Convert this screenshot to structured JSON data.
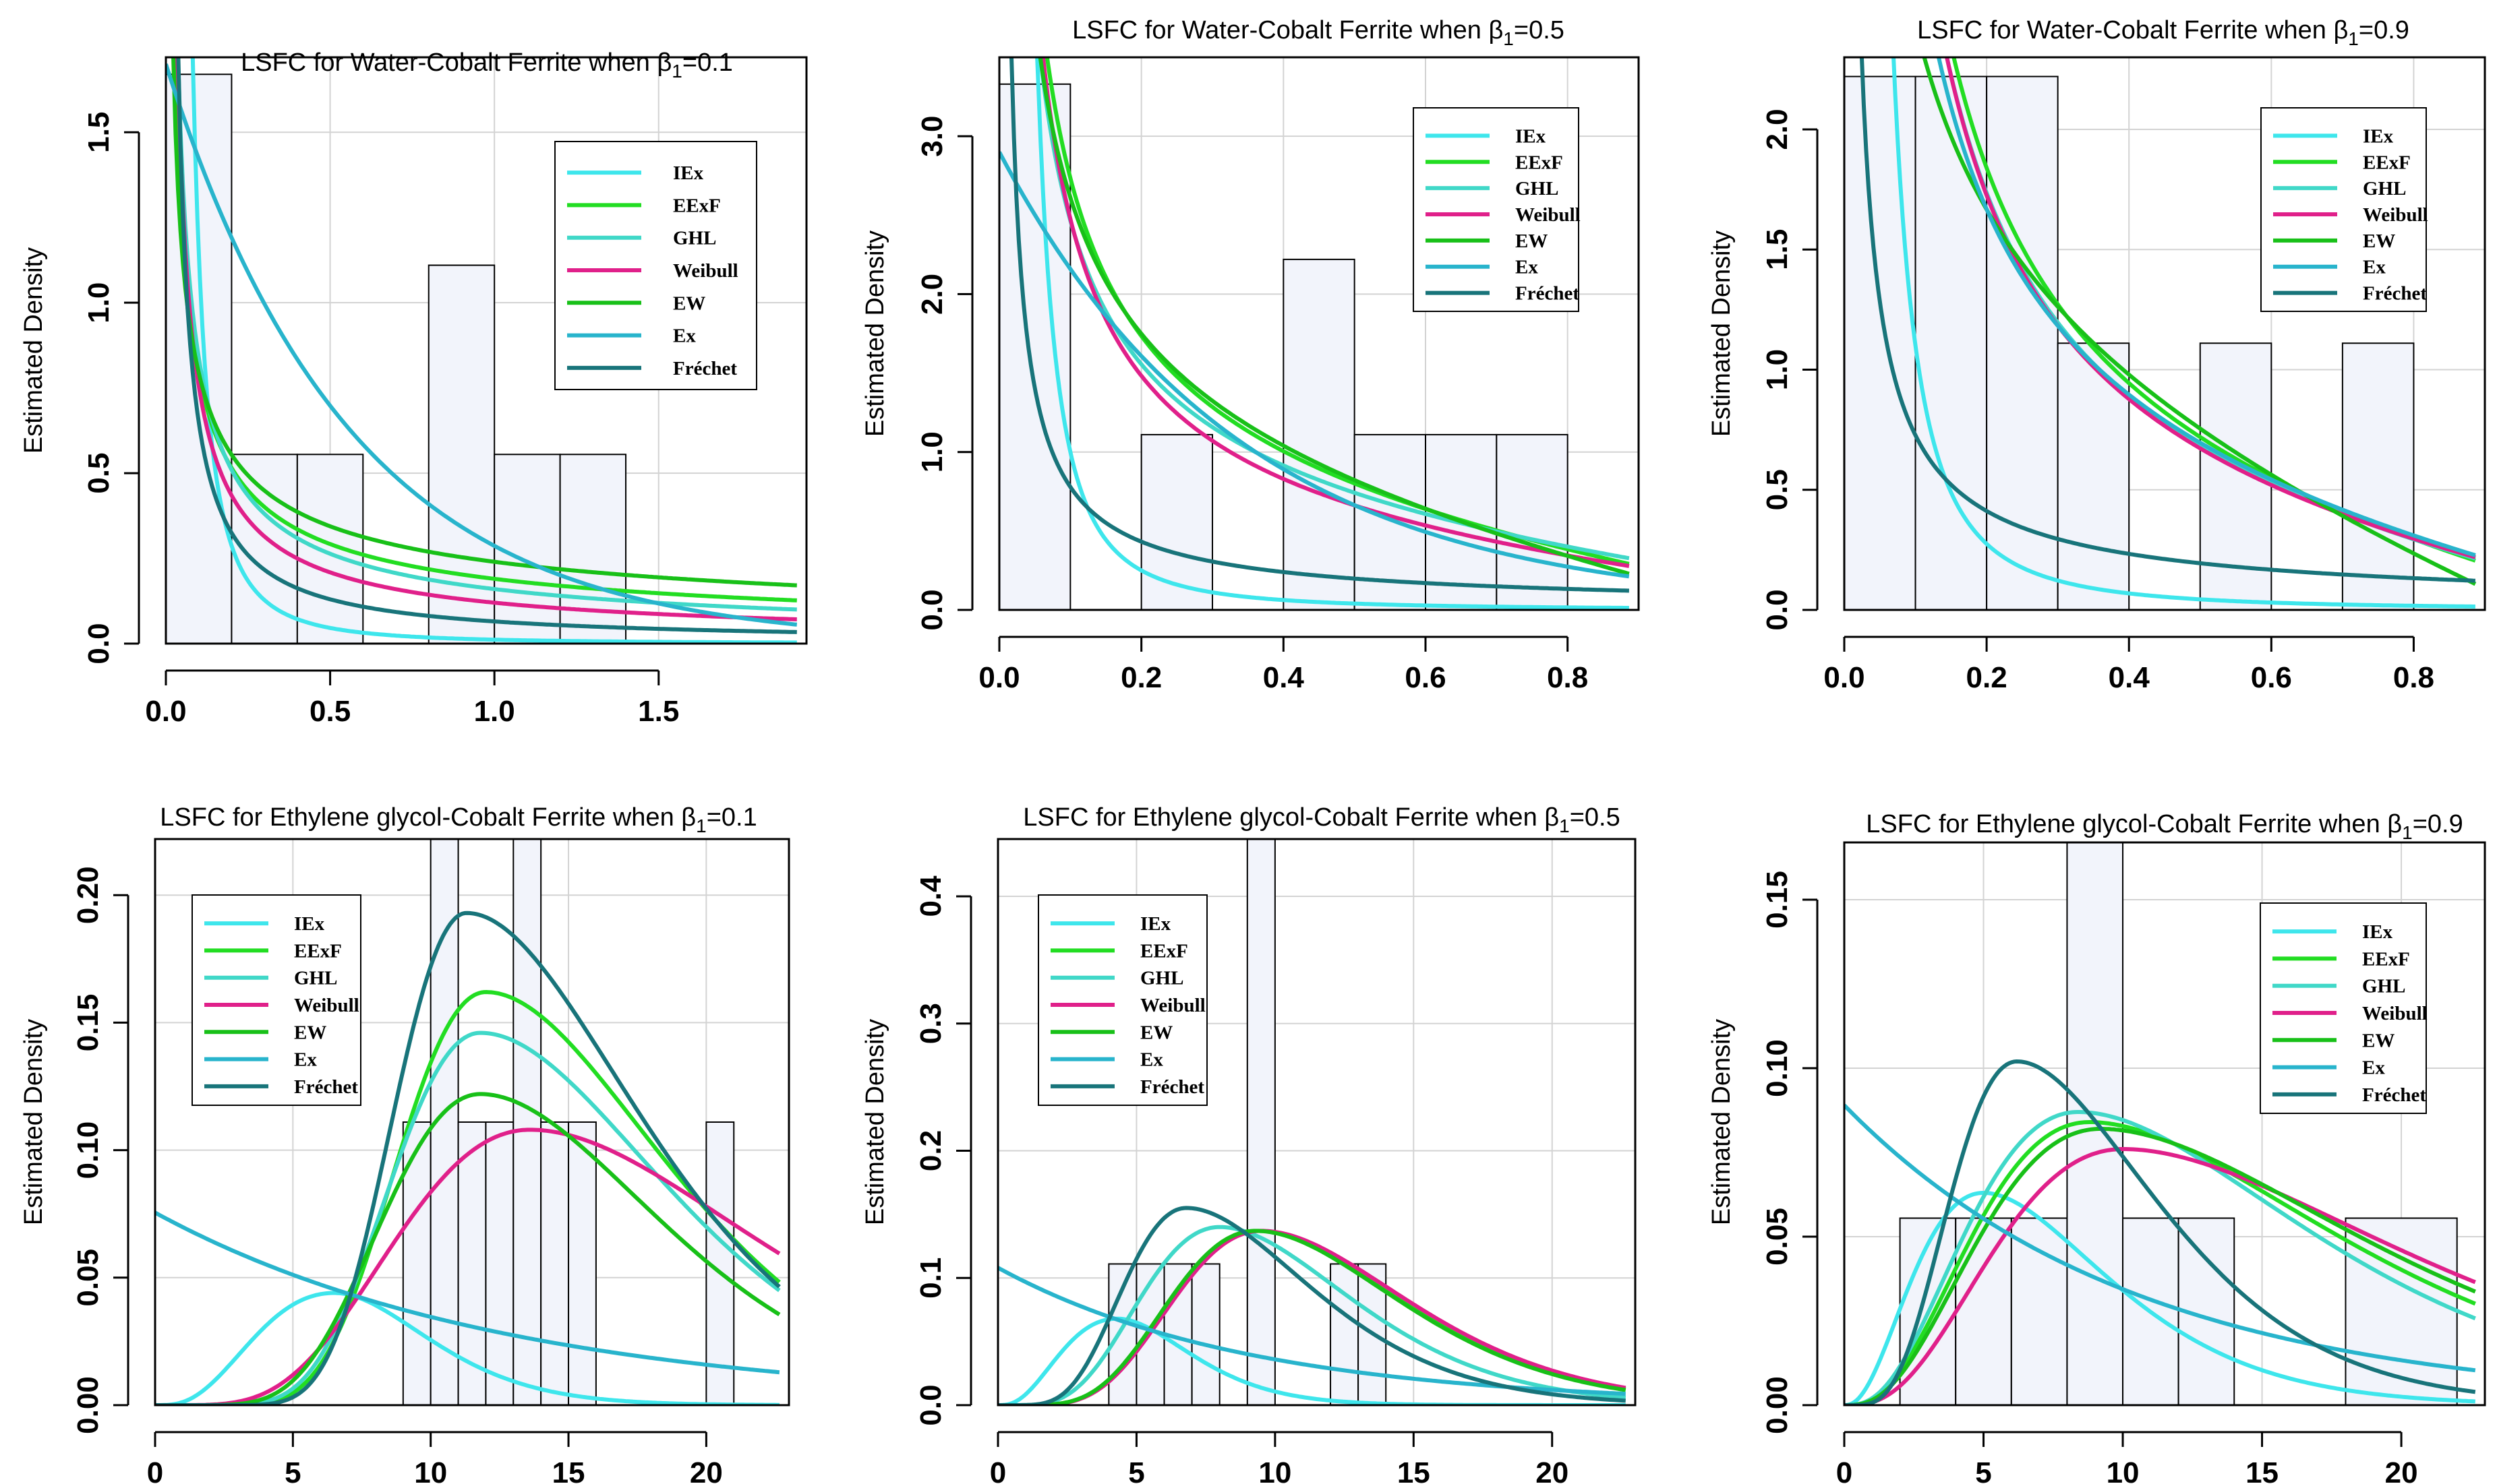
{
  "chart_data": [
    {
      "type": "histogram+density",
      "title_prefix": "LSFC for Water-Cobalt Ferrite when ",
      "title_beta": "β",
      "title_sub": "1",
      "title_suffix": "=0.1",
      "ylabel": "Estimated Density",
      "xlim": [
        0,
        1.95
      ],
      "ylim": [
        0,
        1.72
      ],
      "xticks": [
        0,
        0.5,
        1,
        1.5
      ],
      "xtick_labels": [
        "0.0",
        "0.5",
        "1.0",
        "1.5"
      ],
      "yticks": [
        0,
        0.5,
        1,
        1.5
      ],
      "ytick_labels": [
        "0.0",
        "0.5",
        "1.0",
        "1.5"
      ],
      "xgrid": [
        0,
        0.5,
        1,
        1.5
      ],
      "ygrid": [
        0,
        0.5,
        1,
        1.5
      ],
      "bins": [
        [
          0,
          0.2,
          1.67
        ],
        [
          0.2,
          0.4,
          0.555
        ],
        [
          0.4,
          0.6,
          0.555
        ],
        [
          0.6,
          0.8,
          0
        ],
        [
          0.8,
          1.0,
          1.11
        ],
        [
          1.0,
          1.2,
          0.555
        ],
        [
          1.2,
          1.4,
          0.555
        ]
      ],
      "series": [
        {
          "name": "IEx",
          "color": "#3ee6ec",
          "kind": "iex",
          "params": [
            0.0115
          ]
        },
        {
          "name": "EExF",
          "color": "#22dd22",
          "kind": "pow",
          "params": [
            0.19,
            0.62,
            0
          ]
        },
        {
          "name": "GHL",
          "color": "#40d8c8",
          "kind": "pow",
          "params": [
            0.16,
            0.72,
            0
          ]
        },
        {
          "name": "Weibull",
          "color": "#e0208a",
          "kind": "pow",
          "params": [
            0.12,
            0.8,
            0
          ]
        },
        {
          "name": "EW",
          "color": "#18c018",
          "kind": "pow",
          "params": [
            0.24,
            0.52,
            0
          ]
        },
        {
          "name": "Ex",
          "color": "#28b4cc",
          "kind": "exp",
          "params": [
            1.7,
            1.78
          ]
        },
        {
          "name": "Fréchet",
          "color": "#18747a",
          "kind": "pow",
          "params": [
            0.065,
            1.0,
            0
          ]
        }
      ],
      "legend_position": "top-right"
    },
    {
      "type": "histogram+density",
      "title_prefix": "LSFC for Water-Cobalt Ferrite when ",
      "title_beta": "β",
      "title_sub": "1",
      "title_suffix": "=0.5",
      "ylabel": "Estimated Density",
      "xlim": [
        0,
        0.9
      ],
      "ylim": [
        0,
        3.5
      ],
      "xticks": [
        0,
        0.2,
        0.4,
        0.6,
        0.8
      ],
      "xtick_labels": [
        "0.0",
        "0.2",
        "0.4",
        "0.6",
        "0.8"
      ],
      "yticks": [
        0,
        1,
        2,
        3
      ],
      "ytick_labels": [
        "0.0",
        "1.0",
        "2.0",
        "3.0"
      ],
      "xgrid": [
        0,
        0.2,
        0.4,
        0.6,
        0.8
      ],
      "ygrid": [
        0,
        1,
        2,
        3
      ],
      "bins": [
        [
          0,
          0.1,
          3.33
        ],
        [
          0.1,
          0.2,
          0
        ],
        [
          0.2,
          0.3,
          1.11
        ],
        [
          0.3,
          0.4,
          0
        ],
        [
          0.4,
          0.5,
          2.22
        ],
        [
          0.5,
          0.6,
          1.11
        ],
        [
          0.6,
          0.7,
          1.11
        ],
        [
          0.7,
          0.8,
          1.11
        ]
      ],
      "series": [
        {
          "name": "IEx",
          "color": "#3ee6ec",
          "kind": "iex",
          "params": [
            0.01
          ]
        },
        {
          "name": "EExF",
          "color": "#22dd22",
          "kind": "pow",
          "params": [
            0.7,
            0.6,
            -0.52
          ]
        },
        {
          "name": "GHL",
          "color": "#40d8c8",
          "kind": "pow",
          "params": [
            0.6,
            0.62,
            -0.36
          ]
        },
        {
          "name": "Weibull",
          "color": "#e0208a",
          "kind": "pow",
          "params": [
            0.5,
            0.7,
            -0.3
          ]
        },
        {
          "name": "EW",
          "color": "#18c018",
          "kind": "pow",
          "params": [
            0.85,
            0.5,
            -0.76
          ]
        },
        {
          "name": "Ex",
          "color": "#28b4cc",
          "kind": "exp",
          "params": [
            2.9,
            2.95
          ]
        },
        {
          "name": "Fréchet",
          "color": "#18747a",
          "kind": "pow",
          "params": [
            0.11,
            0.85,
            0
          ]
        }
      ],
      "legend_position": "top-right"
    },
    {
      "type": "histogram+density",
      "title_prefix": "LSFC for Water-Cobalt Ferrite when ",
      "title_beta": "β",
      "title_sub": "1",
      "title_suffix": "=0.9",
      "ylabel": "Estimated Density",
      "xlim": [
        0,
        0.9
      ],
      "ylim": [
        0,
        2.3
      ],
      "xticks": [
        0,
        0.2,
        0.4,
        0.6,
        0.8
      ],
      "xtick_labels": [
        "0.0",
        "0.2",
        "0.4",
        "0.6",
        "0.8"
      ],
      "yticks": [
        0,
        0.5,
        1,
        1.5,
        2
      ],
      "ytick_labels": [
        "0.0",
        "0.5",
        "1.0",
        "1.5",
        "2.0"
      ],
      "xgrid": [
        0,
        0.2,
        0.4,
        0.6,
        0.8
      ],
      "ygrid": [
        0,
        0.5,
        1,
        1.5,
        2
      ],
      "bins": [
        [
          0,
          0.1,
          2.22
        ],
        [
          0.1,
          0.2,
          2.22
        ],
        [
          0.2,
          0.3,
          2.22
        ],
        [
          0.3,
          0.4,
          1.11
        ],
        [
          0.4,
          0.5,
          0
        ],
        [
          0.5,
          0.6,
          1.11
        ],
        [
          0.6,
          0.7,
          0
        ],
        [
          0.7,
          0.8,
          1.11
        ]
      ],
      "series": [
        {
          "name": "IEx",
          "color": "#3ee6ec",
          "kind": "iex",
          "params": [
            0.011
          ]
        },
        {
          "name": "EExF",
          "color": "#22dd22",
          "kind": "pow",
          "params": [
            0.55,
            0.78,
            -0.45
          ]
        },
        {
          "name": "GHL",
          "color": "#40d8c8",
          "kind": "pow",
          "params": [
            0.5,
            0.8,
            -0.38
          ]
        },
        {
          "name": "Weibull",
          "color": "#e0208a",
          "kind": "pow",
          "params": [
            0.48,
            0.82,
            -0.35
          ]
        },
        {
          "name": "EW",
          "color": "#18c018",
          "kind": "pow",
          "params": [
            0.9,
            0.45,
            -0.95
          ]
        },
        {
          "name": "Ex",
          "color": "#28b4cc",
          "kind": "pow",
          "params": [
            0.55,
            0.72,
            -0.42
          ]
        },
        {
          "name": "Fréchet",
          "color": "#18747a",
          "kind": "pow",
          "params": [
            0.11,
            0.82,
            0
          ]
        }
      ],
      "legend_position": "top-right"
    },
    {
      "type": "histogram+density",
      "title_prefix": "LSFC for Ethylene glycol-Cobalt Ferrite when ",
      "title_beta": "β",
      "title_sub": "1",
      "title_suffix": "=0.1",
      "ylabel": "Estimated Density",
      "xlim": [
        0,
        23
      ],
      "ylim": [
        0,
        0.222
      ],
      "xticks": [
        0,
        5,
        10,
        15,
        20
      ],
      "xtick_labels": [
        "0",
        "5",
        "10",
        "15",
        "20"
      ],
      "yticks": [
        0,
        0.05,
        0.1,
        0.15,
        0.2
      ],
      "ytick_labels": [
        "0.00",
        "0.05",
        "0.10",
        "0.15",
        "0.20"
      ],
      "xgrid": [
        0,
        5,
        10,
        15,
        20
      ],
      "ygrid": [
        0,
        0.05,
        0.1,
        0.15,
        0.2
      ],
      "bins": [
        [
          9,
          10,
          0.111
        ],
        [
          10,
          11,
          0.222
        ],
        [
          11,
          12,
          0.111
        ],
        [
          12,
          13,
          0.111
        ],
        [
          13,
          14,
          0.222
        ],
        [
          14,
          15,
          0.111
        ],
        [
          15,
          16,
          0.111
        ],
        [
          20,
          21,
          0.111
        ]
      ],
      "series": [
        {
          "name": "IEx",
          "color": "#3ee6ec",
          "kind": "gam",
          "params": [
            0.044,
            6.5,
            3.5,
            0.9
          ]
        },
        {
          "name": "EExF",
          "color": "#22dd22",
          "kind": "gam",
          "params": [
            0.162,
            12,
            12,
            0.25
          ]
        },
        {
          "name": "GHL",
          "color": "#40d8c8",
          "kind": "gam",
          "params": [
            0.146,
            11.8,
            11,
            0.25
          ]
        },
        {
          "name": "Weibull",
          "color": "#e0208a",
          "kind": "gam",
          "params": [
            0.108,
            13.6,
            6,
            0.4
          ]
        },
        {
          "name": "EW",
          "color": "#18c018",
          "kind": "gam",
          "params": [
            0.122,
            11.8,
            9,
            0.32
          ]
        },
        {
          "name": "Ex",
          "color": "#28b4cc",
          "kind": "exp",
          "params": [
            0.0755,
            0.078
          ]
        },
        {
          "name": "Fréchet",
          "color": "#18747a",
          "kind": "gam",
          "params": [
            0.193,
            11.3,
            16,
            0.18
          ]
        }
      ],
      "legend_position": "top-left"
    },
    {
      "type": "histogram+density",
      "title_prefix": "LSFC for Ethylene glycol-Cobalt Ferrite when ",
      "title_beta": "β",
      "title_sub": "1",
      "title_suffix": "=0.5",
      "ylabel": "Estimated Density",
      "xlim": [
        0,
        23
      ],
      "ylim": [
        0,
        0.445
      ],
      "xticks": [
        0,
        5,
        10,
        15,
        20
      ],
      "xtick_labels": [
        "0",
        "5",
        "10",
        "15",
        "20"
      ],
      "yticks": [
        0,
        0.1,
        0.2,
        0.3,
        0.4
      ],
      "ytick_labels": [
        "0.0",
        "0.1",
        "0.2",
        "0.3",
        "0.4"
      ],
      "xgrid": [
        0,
        5,
        10,
        15,
        20
      ],
      "ygrid": [
        0,
        0.1,
        0.2,
        0.3,
        0.4
      ],
      "bins": [
        [
          4,
          5,
          0.111
        ],
        [
          5,
          6,
          0.111
        ],
        [
          6,
          7,
          0.111
        ],
        [
          7,
          8,
          0.111
        ],
        [
          8,
          9,
          0
        ],
        [
          9,
          10,
          0.445
        ],
        [
          10,
          11,
          0
        ],
        [
          11,
          12,
          0
        ],
        [
          12,
          13,
          0.111
        ],
        [
          13,
          14,
          0.111
        ]
      ],
      "series": [
        {
          "name": "IEx",
          "color": "#3ee6ec",
          "kind": "gam",
          "params": [
            0.068,
            4.3,
            3,
            0.8
          ]
        },
        {
          "name": "EExF",
          "color": "#22dd22",
          "kind": "gam",
          "params": [
            0.137,
            9.4,
            7,
            0.4
          ]
        },
        {
          "name": "GHL",
          "color": "#40d8c8",
          "kind": "gam",
          "params": [
            0.14,
            8,
            6,
            0.42
          ]
        },
        {
          "name": "Weibull",
          "color": "#e0208a",
          "kind": "gam",
          "params": [
            0.137,
            9.5,
            7,
            0.4
          ]
        },
        {
          "name": "EW",
          "color": "#18c018",
          "kind": "gam",
          "params": [
            0.137,
            9.3,
            7,
            0.4
          ]
        },
        {
          "name": "Ex",
          "color": "#28b4cc",
          "kind": "exp",
          "params": [
            0.108,
            0.11
          ]
        },
        {
          "name": "Fréchet",
          "color": "#18747a",
          "kind": "gam",
          "params": [
            0.155,
            6.8,
            7,
            0.3
          ]
        }
      ],
      "legend_position": "top-left"
    },
    {
      "type": "histogram+density",
      "title_prefix": "LSFC for Ethylene glycol-Cobalt Ferrite when ",
      "title_beta": "β",
      "title_sub": "1",
      "title_suffix": "=0.9",
      "ylabel": "Estimated Density",
      "xlim": [
        0,
        23
      ],
      "ylim": [
        0,
        0.167
      ],
      "xticks": [
        0,
        5,
        10,
        15,
        20
      ],
      "xtick_labels": [
        "0",
        "5",
        "10",
        "15",
        "20"
      ],
      "yticks": [
        0,
        0.05,
        0.1,
        0.15
      ],
      "ytick_labels": [
        "0.00",
        "0.05",
        "0.10",
        "0.15"
      ],
      "xgrid": [
        0,
        5,
        10,
        15,
        20
      ],
      "ygrid": [
        0,
        0.05,
        0.1,
        0.15
      ],
      "bins": [
        [
          2,
          4,
          0.0555
        ],
        [
          4,
          6,
          0.0555
        ],
        [
          6,
          8,
          0.0555
        ],
        [
          8,
          10,
          0.167
        ],
        [
          10,
          12,
          0.0555
        ],
        [
          12,
          14,
          0.0555
        ],
        [
          14,
          16,
          0
        ],
        [
          16,
          18,
          0
        ],
        [
          18,
          22,
          0.0555
        ]
      ],
      "series": [
        {
          "name": "IEx",
          "color": "#3ee6ec",
          "kind": "gam",
          "params": [
            0.063,
            5,
            2.5,
            0.5
          ]
        },
        {
          "name": "EExF",
          "color": "#22dd22",
          "kind": "gam",
          "params": [
            0.084,
            8.8,
            3,
            0.34
          ]
        },
        {
          "name": "GHL",
          "color": "#40d8c8",
          "kind": "gam",
          "params": [
            0.087,
            8.4,
            3,
            0.36
          ]
        },
        {
          "name": "Weibull",
          "color": "#e0208a",
          "kind": "gam",
          "params": [
            0.076,
            10,
            3.2,
            0.32
          ]
        },
        {
          "name": "EW",
          "color": "#18c018",
          "kind": "gam",
          "params": [
            0.082,
            9.2,
            3,
            0.33
          ]
        },
        {
          "name": "Ex",
          "color": "#28b4cc",
          "kind": "exp",
          "params": [
            0.089,
            0.095
          ]
        },
        {
          "name": "Fréchet",
          "color": "#18747a",
          "kind": "gam",
          "params": [
            0.102,
            6.2,
            5,
            0.3
          ]
        }
      ],
      "legend_position": "top-right"
    }
  ]
}
